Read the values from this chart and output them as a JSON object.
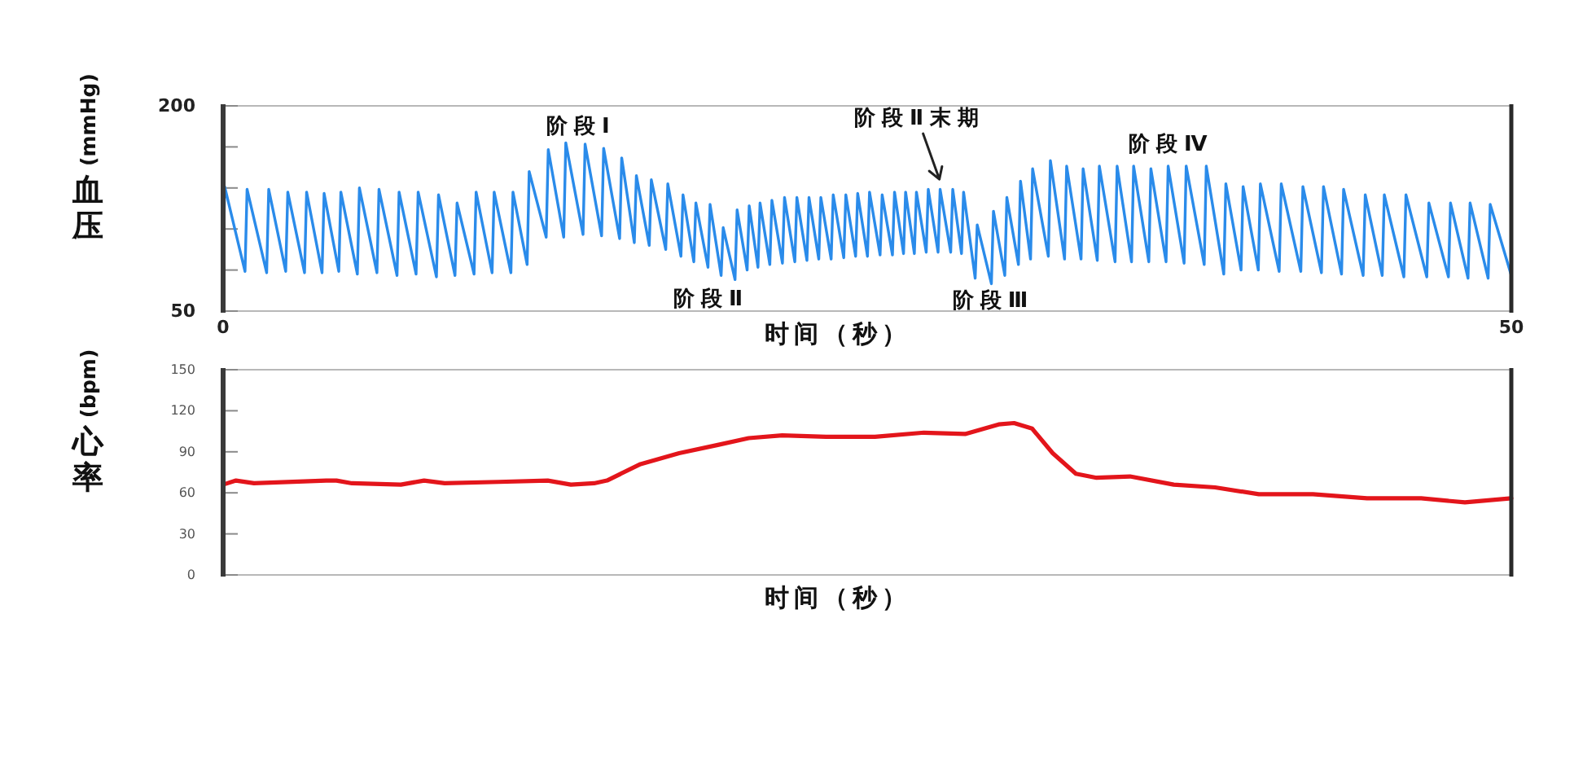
{
  "chart_data": [
    {
      "type": "line",
      "xlabel": "时间（秒）",
      "ylabel": "(mmHg)血压",
      "xlim": [
        0,
        50
      ],
      "xticks": [
        0,
        50
      ],
      "ylim": [
        50,
        200
      ],
      "yticks": [
        50,
        {
          "value": 80,
          "label": null
        },
        {
          "value": 110,
          "label": null
        },
        {
          "value": 140,
          "label": null
        },
        {
          "value": 170,
          "label": null
        },
        200
      ],
      "x": [
        0.0,
        0.06,
        0.85,
        0.93,
        1.69,
        1.77,
        2.43,
        2.51,
        3.16,
        3.24,
        3.84,
        3.92,
        4.49,
        4.57,
        5.21,
        5.29,
        5.97,
        6.05,
        6.75,
        6.83,
        7.49,
        7.57,
        8.28,
        8.36,
        9.0,
        9.08,
        9.74,
        9.82,
        10.44,
        10.52,
        11.17,
        11.25,
        11.8,
        11.88,
        12.54,
        12.62,
        13.22,
        13.3,
        13.97,
        14.05,
        14.69,
        14.77,
        15.39,
        15.47,
        15.96,
        16.04,
        16.54,
        16.62,
        17.18,
        17.26,
        17.77,
        17.85,
        18.27,
        18.35,
        18.82,
        18.9,
        19.33,
        19.41,
        19.87,
        19.95,
        20.34,
        20.42,
        20.76,
        20.84,
        21.22,
        21.3,
        21.71,
        21.79,
        22.19,
        22.27,
        22.66,
        22.74,
        23.12,
        23.2,
        23.6,
        23.68,
        24.09,
        24.17,
        24.55,
        24.63,
        25.01,
        25.09,
        25.5,
        25.58,
        25.98,
        26.06,
        26.41,
        26.49,
        26.83,
        26.91,
        27.29,
        27.37,
        27.75,
        27.83,
        28.24,
        28.32,
        28.66,
        28.74,
        29.19,
        29.27,
        29.82,
        29.9,
        30.34,
        30.42,
        30.87,
        30.95,
        31.34,
        31.42,
        32.03,
        32.11,
        32.66,
        32.74,
        33.3,
        33.38,
        33.93,
        34.01,
        34.62,
        34.7,
        35.26,
        35.34,
        35.93,
        36.01,
        36.6,
        36.68,
        37.3,
        37.38,
        38.08,
        38.16,
        38.84,
        38.92,
        39.51,
        39.59,
        40.18,
        40.26,
        40.99,
        41.07,
        41.83,
        41.91,
        42.63,
        42.71,
        43.41,
        43.49,
        44.25,
        44.33,
        44.99,
        45.07,
        45.83,
        45.91,
        46.72,
        46.8,
        47.56,
        47.64,
        48.32,
        48.4,
        49.1,
        49.18,
        50.0
      ],
      "series": [
        {
          "color": "#2a8bea",
          "values": [
            79,
            141,
            79,
            139,
            78,
            139,
            79,
            137,
            78,
            137,
            78,
            136,
            79,
            137,
            77,
            140,
            78,
            139,
            76,
            137,
            77,
            137,
            75,
            135,
            76,
            129,
            77,
            137,
            78,
            137,
            78,
            137,
            84,
            152,
            104,
            168,
            104,
            173,
            106,
            172,
            105,
            169,
            103,
            162,
            100,
            149,
            98,
            146,
            95,
            143,
            90,
            135,
            86,
            129,
            82,
            128,
            76,
            111,
            73,
            124,
            80,
            127,
            82,
            129,
            84,
            131,
            85,
            133,
            86,
            133,
            87,
            133,
            88,
            133,
            88,
            135,
            89,
            135,
            90,
            136,
            90,
            137,
            91,
            135,
            91,
            137,
            92,
            137,
            92,
            137,
            93,
            139,
            93,
            139,
            93,
            139,
            92,
            137,
            74,
            113,
            70,
            123,
            76,
            133,
            84,
            145,
            88,
            154,
            90,
            160,
            88,
            156,
            88,
            154,
            87,
            156,
            86,
            156,
            86,
            156,
            86,
            154,
            86,
            156,
            85,
            156,
            84,
            156,
            77,
            143,
            80,
            141,
            80,
            143,
            79,
            143,
            79,
            141,
            78,
            141,
            77,
            139,
            76,
            135,
            76,
            135,
            75,
            135,
            75,
            129,
            75,
            129,
            74,
            129,
            74,
            128,
            76
          ]
        }
      ],
      "annotations": [
        "阶段Ⅰ",
        "阶段Ⅱ",
        {
          "text": "阶段Ⅱ末期",
          "x": 27.8,
          "y": 144
        },
        "阶段Ⅲ",
        "阶段Ⅳ"
      ]
    },
    {
      "type": "line",
      "xlabel": "时间（秒）",
      "ylabel": "(bpm)心率",
      "xlim": [
        0,
        50
      ],
      "ylim": [
        0,
        150
      ],
      "yticks": [
        0,
        30,
        60,
        90,
        120,
        150
      ],
      "tick_labels": "y",
      "x": [
        0,
        0.5,
        1.2,
        4.0,
        4.4,
        5.0,
        6.9,
        7.8,
        8.6,
        10.7,
        12.6,
        13.5,
        14.4,
        14.9,
        16.2,
        17.7,
        19.2,
        20.4,
        21.7,
        23.4,
        25.3,
        27.2,
        28.8,
        30.1,
        30.7,
        31.4,
        32.2,
        33.1,
        33.9,
        35.2,
        36.9,
        38.5,
        40.2,
        42.3,
        44.4,
        46.5,
        48.2,
        50
      ],
      "series": [
        {
          "color": "#e3151b",
          "values": [
            66,
            69,
            67,
            69,
            69,
            67,
            66,
            69,
            67,
            68,
            69,
            66,
            67,
            69,
            81,
            89,
            95,
            100,
            102,
            101,
            101,
            104,
            103,
            110,
            111,
            107,
            89,
            74,
            71,
            72,
            66,
            64,
            59,
            59,
            56,
            56,
            53,
            56
          ]
        }
      ]
    }
  ]
}
